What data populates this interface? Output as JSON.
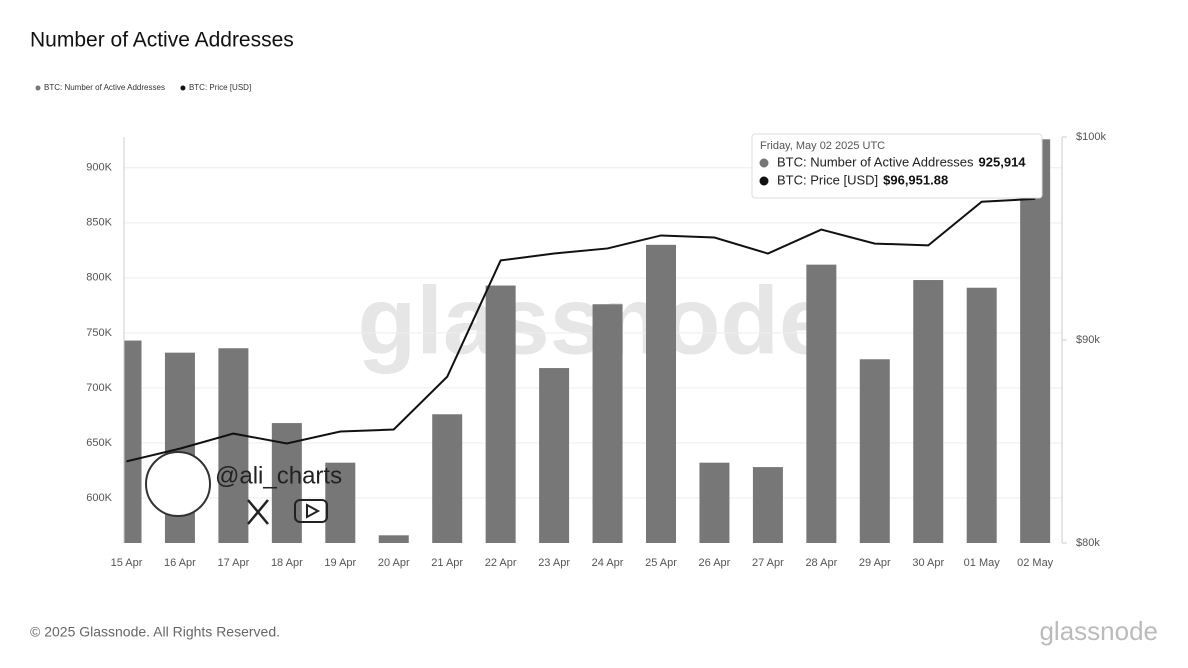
{
  "chart_data": {
    "type": "bar",
    "title": "Number of Active Addresses",
    "categories": [
      "15 Apr",
      "16 Apr",
      "17 Apr",
      "18 Apr",
      "19 Apr",
      "20 Apr",
      "21 Apr",
      "22 Apr",
      "23 Apr",
      "24 Apr",
      "25 Apr",
      "26 Apr",
      "27 Apr",
      "28 Apr",
      "29 Apr",
      "30 Apr",
      "01 May",
      "02 May"
    ],
    "series": [
      {
        "name": "BTC: Number of Active Addresses",
        "type": "bar",
        "color": "#777777",
        "values": [
          743000,
          732000,
          736000,
          668000,
          632000,
          566000,
          676000,
          793000,
          718000,
          776000,
          830000,
          632000,
          628000,
          812000,
          726000,
          798000,
          791000,
          925914
        ]
      },
      {
        "name": "BTC: Price [USD]",
        "type": "line",
        "axis": "y2",
        "color": "#111111",
        "values": [
          84020,
          84650,
          85390,
          84900,
          85490,
          85590,
          88190,
          93920,
          94260,
          94510,
          95150,
          95050,
          94260,
          95440,
          94750,
          94660,
          96810,
          96951.88
        ]
      }
    ],
    "ylim": [
      559000,
      928000
    ],
    "yticks": [
      {
        "value": 600000,
        "label": "600K"
      },
      {
        "value": 650000,
        "label": "650K"
      },
      {
        "value": 700000,
        "label": "700K"
      },
      {
        "value": 750000,
        "label": "750K"
      },
      {
        "value": 800000,
        "label": "800K"
      },
      {
        "value": 850000,
        "label": "850K"
      },
      {
        "value": 900000,
        "label": "900K"
      }
    ],
    "y2lim": [
      80000,
      100000
    ],
    "y2ticks": [
      {
        "value": 80000,
        "label": "$80k"
      },
      {
        "value": 90000,
        "label": "$90k"
      },
      {
        "value": 100000,
        "label": "$100k"
      }
    ],
    "grid": true,
    "tooltip": {
      "title": "Friday, May 02 2025 UTC",
      "value_labels": [
        "925,914",
        "$96,951.88"
      ]
    },
    "watermark": "glassnode",
    "handle": "@ali_charts",
    "footer": "© 2025 Glassnode. All Rights Reserved.",
    "logo": "glassnode"
  }
}
